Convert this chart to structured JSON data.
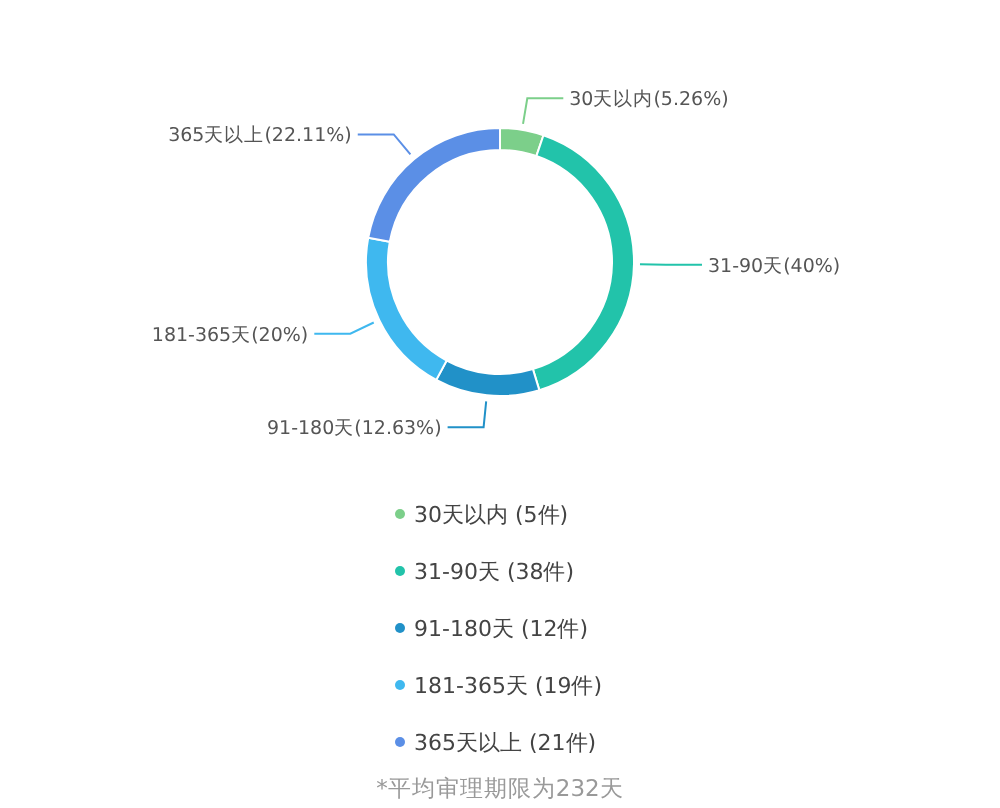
{
  "chart_data": {
    "type": "donut",
    "categories": [
      "30天以内",
      "31-90天",
      "91-180天",
      "181-365天",
      "365天以上"
    ],
    "values": [
      5.26,
      40,
      12.63,
      20,
      22.11
    ],
    "value_labels": [
      "(5.26%)",
      "(40%)",
      "(12.63%)",
      "(20%)",
      "(22.11%)"
    ],
    "colors": [
      "#7ccf8a",
      "#22c3aa",
      "#2191c8",
      "#3fb8ef",
      "#5b8fe6"
    ],
    "annotations": [
      "30天以内 (5件)",
      "31-90天 (38件)",
      "91-180天 (12件)",
      "181-365天 (19件)",
      "365天以上 (21件)",
      "*平均审理期限为232天"
    ]
  }
}
